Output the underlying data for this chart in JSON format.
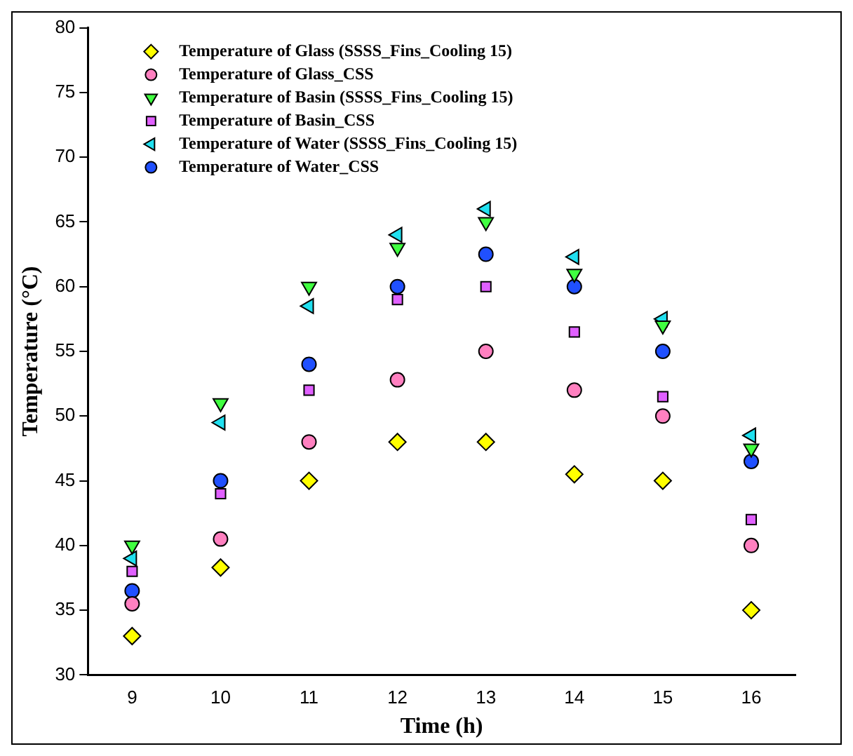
{
  "chart_data": {
    "type": "scatter",
    "xlabel": "Time (h)",
    "ylabel": "Temperature (°C)",
    "x": [
      9,
      10,
      11,
      12,
      13,
      14,
      15,
      16
    ],
    "xlim": [
      8.5,
      16.5
    ],
    "xticks": [
      9,
      10,
      11,
      12,
      13,
      14,
      15,
      16
    ],
    "ylim": [
      30,
      80
    ],
    "yticks": [
      30,
      35,
      40,
      45,
      50,
      55,
      60,
      65,
      70,
      75,
      80
    ],
    "grid": false,
    "legend": "top left",
    "series": [
      {
        "name": "Temperature of Glass (SSSS_Fins_Cooling 15)",
        "color": "#ffff00",
        "marker": "diamond",
        "values": [
          33,
          38.3,
          45,
          48,
          48,
          45.5,
          45,
          35
        ]
      },
      {
        "name": "Temperature of Glass_CSS",
        "color": "#ff80c0",
        "marker": "circle",
        "values": [
          35.5,
          40.5,
          48,
          52.8,
          55,
          52,
          50,
          40
        ]
      },
      {
        "name": "Temperature of Basin (SSSS_Fins_Cooling 15)",
        "color": "#40ff40",
        "marker": "triangle-down",
        "values": [
          40,
          51,
          60,
          63,
          65,
          61,
          57,
          47.5
        ]
      },
      {
        "name": "Temperature of Basin_CSS",
        "color": "#e060ff",
        "marker": "square",
        "values": [
          38,
          44,
          52,
          59,
          60,
          56.5,
          51.5,
          42
        ]
      },
      {
        "name": "Temperature of Water (SSSS_Fins_Cooling 15)",
        "color": "#20e0f0",
        "marker": "triangle-left",
        "values": [
          39,
          49.5,
          58.5,
          64,
          66,
          62.3,
          57.5,
          48.5
        ]
      },
      {
        "name": "Temperature of Water_CSS",
        "color": "#2050ff",
        "marker": "circle",
        "values": [
          36.5,
          45,
          54,
          60,
          62.5,
          60,
          55,
          46.5
        ]
      }
    ]
  }
}
